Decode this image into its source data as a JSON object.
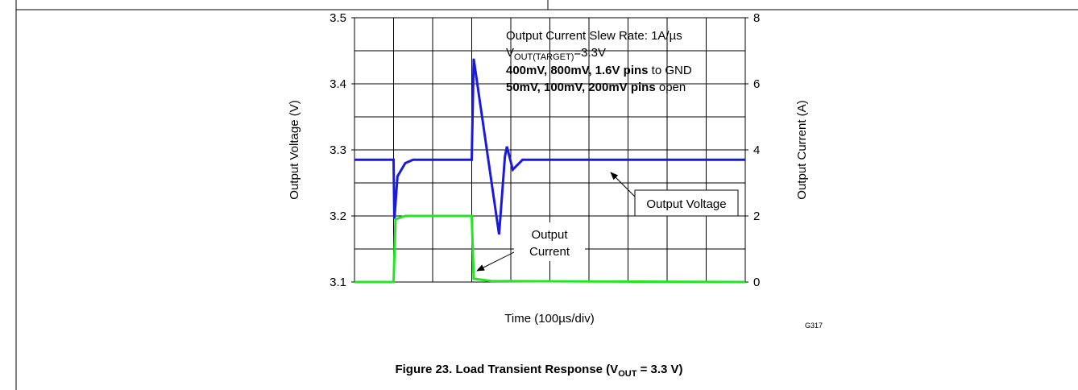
{
  "chart_data": {
    "type": "line",
    "xlabel": "Time (100µs/div)",
    "ylabel": "Output Voltage (V)",
    "y2label": "Output Current (A)",
    "xlim": [
      0,
      10
    ],
    "ylim": [
      3.1,
      3.5
    ],
    "yticks": [
      3.1,
      3.2,
      3.3,
      3.4,
      3.5
    ],
    "y2lim": [
      0,
      8
    ],
    "y2ticks": [
      0,
      2,
      4,
      6,
      8
    ],
    "grid": true,
    "series": [
      {
        "name": "Output Voltage",
        "color": "#1a1adc",
        "x": [
          0,
          1.0,
          1.02,
          1.1,
          1.3,
          1.5,
          3.0,
          3.05,
          3.7,
          3.85,
          3.9,
          4.05,
          4.3,
          10
        ],
        "values": [
          3.285,
          3.285,
          3.195,
          3.26,
          3.28,
          3.285,
          3.285,
          3.438,
          3.172,
          3.29,
          3.305,
          3.27,
          3.285,
          3.285
        ]
      },
      {
        "name": "Output Current",
        "color": "#22e622",
        "axis": "y2",
        "x": [
          0,
          1.0,
          1.05,
          1.3,
          3.0,
          3.05,
          3.5,
          10
        ],
        "values": [
          0,
          0,
          1.9,
          2.0,
          2.0,
          0.1,
          0.03,
          0
        ]
      }
    ],
    "notes": {
      "line1": "Output Current Slew Rate: 1A/µs",
      "line2": [
        "V",
        "OUT(TARGET)",
        "=3.3V"
      ],
      "line3": [
        "400mV, 800mV, 1.6V pins",
        " to GND"
      ],
      "line4": [
        "50mV, 100mV, 200mV pins",
        " open"
      ]
    },
    "code": "G317",
    "caption": [
      "Figure 23. Load Transient Response (V",
      "OUT",
      " = 3.3 V)"
    ]
  }
}
